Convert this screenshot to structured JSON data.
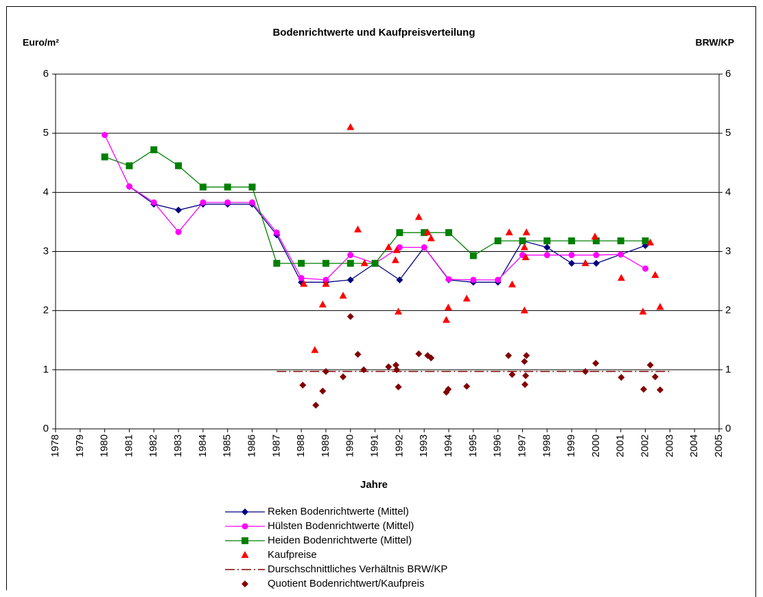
{
  "chart_data": {
    "type": "line",
    "title": "Bodenrichtwerte und Kaufpreisverteilung",
    "y_label": "Euro/m²",
    "y2_label": "BRW/KP",
    "x_label": "Jahre",
    "xlim": [
      1978,
      2005
    ],
    "xticks": [
      1978,
      1979,
      1980,
      1981,
      1982,
      1983,
      1984,
      1985,
      1986,
      1987,
      1988,
      1989,
      1990,
      1991,
      1992,
      1993,
      1994,
      1995,
      1996,
      1997,
      1998,
      1999,
      2000,
      2001,
      2002,
      2003,
      2004,
      2005
    ],
    "ylim": [
      0,
      6
    ],
    "yticks": [
      0,
      1,
      2,
      3,
      4,
      5,
      6
    ],
    "y2lim": [
      0,
      6
    ],
    "y2ticks": [
      0,
      1,
      2,
      3,
      4,
      5,
      6
    ],
    "grid": true,
    "legend": "bottom",
    "series": [
      {
        "name": "Reken Bodenrichtwerte (Mittel)",
        "color": "#000080",
        "kind": "line",
        "marker": "diamond",
        "x": [
          1981,
          1982,
          1983,
          1984,
          1985,
          1986,
          1987,
          1988,
          1989,
          1990,
          1991,
          1992,
          1993,
          1994,
          1995,
          1996,
          1997,
          1998,
          1999,
          2000,
          2001,
          2002
        ],
        "values": [
          4.1,
          3.8,
          3.7,
          3.8,
          3.8,
          3.8,
          3.28,
          2.48,
          2.48,
          2.52,
          2.8,
          2.52,
          3.07,
          2.52,
          2.48,
          2.48,
          3.18,
          3.07,
          2.8,
          2.8,
          2.95,
          3.1
        ]
      },
      {
        "name": "Hülsten Bodenrichtwerte (Mittel)",
        "color": "#ff00ff",
        "kind": "line",
        "marker": "circle",
        "x": [
          1980,
          1981,
          1982,
          1983,
          1984,
          1985,
          1986,
          1987,
          1988,
          1989,
          1990,
          1991,
          1992,
          1993,
          1994,
          1995,
          1996,
          1997,
          1998,
          1999,
          2000,
          2001,
          2002
        ],
        "values": [
          4.97,
          4.1,
          3.83,
          3.33,
          3.83,
          3.83,
          3.83,
          3.32,
          2.55,
          2.52,
          2.94,
          2.8,
          3.07,
          3.07,
          2.53,
          2.52,
          2.52,
          2.94,
          2.94,
          2.94,
          2.94,
          2.95,
          2.71
        ]
      },
      {
        "name": "Heiden Bodenrichtwerte (Mittel)",
        "color": "#008000",
        "kind": "line",
        "marker": "square",
        "x": [
          1980,
          1981,
          1982,
          1983,
          1984,
          1985,
          1986,
          1987,
          1988,
          1989,
          1990,
          1991,
          1992,
          1993,
          1994,
          1995,
          1996,
          1997,
          1998,
          1999,
          2000,
          2001,
          2002
        ],
        "values": [
          4.6,
          4.45,
          4.72,
          4.45,
          4.09,
          4.09,
          4.09,
          2.8,
          2.8,
          2.8,
          2.8,
          2.8,
          3.32,
          3.32,
          3.32,
          2.93,
          3.18,
          3.18,
          3.18,
          3.18,
          3.18,
          3.18,
          3.18
        ]
      },
      {
        "name": "Kaufpreise",
        "color": "#ff0000",
        "kind": "scatter",
        "marker": "triangle",
        "x": [
          1988.1,
          1988.55,
          1988.87,
          1989.0,
          1989.7,
          1990.0,
          1990.3,
          1990.57,
          1991.55,
          1991.83,
          1991.88,
          1991.95,
          1992.78,
          1993.14,
          1993.28,
          1993.9,
          1993.98,
          1994.73,
          1996.46,
          1996.58,
          1997.08,
          1997.13,
          1997.16,
          1997.08,
          1999.56,
          1999.95,
          2001.02,
          2001.9,
          2002.2,
          2002.4,
          2002.6
        ],
        "values": [
          2.45,
          1.33,
          2.1,
          2.45,
          2.25,
          5.1,
          3.37,
          2.8,
          3.07,
          2.85,
          3.02,
          1.98,
          3.58,
          3.32,
          3.22,
          1.84,
          2.05,
          2.2,
          3.32,
          2.44,
          3.07,
          2.9,
          3.32,
          2.0,
          2.8,
          3.25,
          2.55,
          1.98,
          3.15,
          2.6,
          2.06
        ]
      },
      {
        "name": "Durschschnittliches Verhältnis BRW/KP",
        "color": "#800000",
        "kind": "dashdot",
        "marker": "none",
        "axis": "y2",
        "x": [
          1987,
          2003
        ],
        "values": [
          0.97,
          0.97
        ]
      },
      {
        "name": "Quotient Bodenrichtwert/Kaufpreis",
        "color": "#800000",
        "kind": "scatter",
        "marker": "diamond",
        "axis": "y2",
        "x": [
          1988.06,
          1988.59,
          1988.87,
          1989.0,
          1989.7,
          1990.0,
          1990.3,
          1990.54,
          1991.55,
          1991.85,
          1991.88,
          1991.95,
          1992.78,
          1993.14,
          1993.28,
          1993.9,
          1993.98,
          1994.73,
          1996.43,
          1996.58,
          1997.08,
          1997.1,
          1997.16,
          1997.13,
          1999.56,
          1999.98,
          2001.02,
          2001.93,
          2002.2,
          2002.4,
          2002.6
        ],
        "values": [
          0.74,
          0.4,
          0.64,
          0.97,
          0.88,
          1.9,
          1.26,
          1.0,
          1.05,
          1.08,
          1.0,
          0.71,
          1.27,
          1.24,
          1.2,
          0.62,
          0.67,
          0.72,
          1.24,
          0.92,
          1.14,
          0.75,
          1.24,
          0.9,
          0.97,
          1.11,
          0.87,
          0.67,
          1.08,
          0.88,
          0.66
        ]
      }
    ]
  }
}
